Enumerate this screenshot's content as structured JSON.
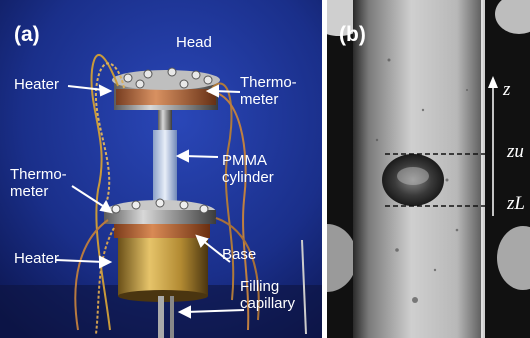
{
  "panel_a": {
    "label": "(a)",
    "annotations": {
      "head": "Head",
      "heater_top": "Heater",
      "thermometer_top": "Thermo-\nmeter",
      "pmma": "PMMA\ncylinder",
      "thermometer_bottom": "Thermo-\nmeter",
      "heater_bottom": "Heater",
      "base": "Base",
      "filling": "Filling\ncapillary"
    }
  },
  "panel_b": {
    "label": "(b)",
    "axis_label": "z",
    "z_upper": "zu",
    "z_lower": "zL"
  }
}
